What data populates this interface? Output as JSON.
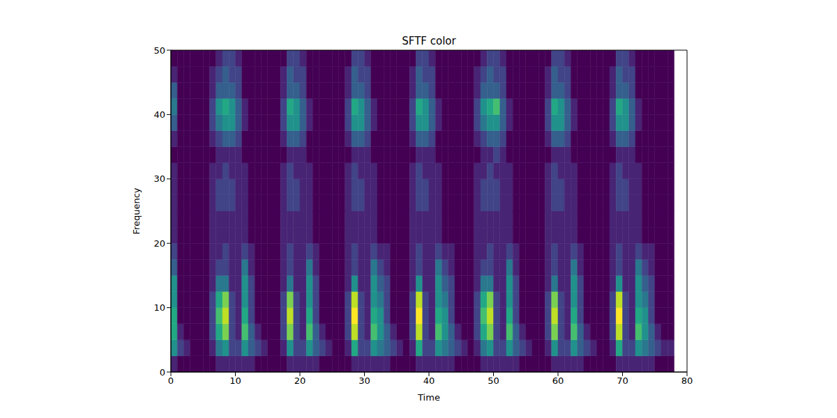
{
  "chart_data": {
    "type": "heatmap",
    "title": "SFTF color",
    "x_label": "Time",
    "y_label": "Frequency",
    "xlim": [
      0,
      80
    ],
    "ylim": [
      0,
      50
    ],
    "xticks": [
      0,
      10,
      20,
      30,
      40,
      50,
      60,
      70,
      80
    ],
    "yticks": [
      0,
      10,
      20,
      30,
      40,
      50
    ],
    "color": "viridis",
    "zlim": [
      0,
      10
    ],
    "x": [
      0,
      1,
      2,
      3,
      4,
      5,
      6,
      7,
      8,
      9,
      10,
      11,
      12,
      13,
      14,
      15,
      16,
      17,
      18,
      19,
      20,
      21,
      22,
      23,
      24,
      25,
      26,
      27,
      28,
      29,
      30,
      31,
      32,
      33,
      34,
      35,
      36,
      37,
      38,
      39,
      40,
      41,
      42,
      43,
      44,
      45,
      46,
      47,
      48,
      49,
      50,
      51,
      52,
      53,
      54,
      55,
      56,
      57,
      58,
      59,
      60,
      61,
      62,
      63,
      64,
      65,
      66,
      67,
      68,
      69,
      70,
      71,
      72,
      73,
      74,
      75,
      76,
      77
    ],
    "y": [
      0,
      2.5,
      5,
      7.5,
      10,
      12.5,
      15,
      17.5,
      20,
      22.5,
      25,
      27.5,
      30,
      32.5,
      35,
      37.5,
      40,
      42.5,
      45,
      47.5
    ],
    "z": [
      [
        1,
        5,
        6,
        6,
        5,
        5,
        3,
        2,
        1,
        1,
        1,
        1,
        1,
        0,
        1,
        3,
        4,
        3,
        1,
        0
      ],
      [
        0,
        2,
        1,
        0,
        0,
        0,
        0,
        0,
        0,
        0,
        0,
        0,
        0,
        0,
        0,
        0,
        0,
        0,
        0,
        0
      ],
      [
        0,
        1,
        0,
        0,
        0,
        0,
        0,
        0,
        0,
        0,
        0,
        0,
        0,
        0,
        0,
        0,
        0,
        0,
        0,
        0
      ],
      [
        0,
        0,
        0,
        0,
        0,
        0,
        0,
        0,
        0,
        0,
        0,
        0,
        0,
        0,
        0,
        0,
        0,
        0,
        0,
        0
      ],
      [
        0,
        0,
        0,
        0,
        0,
        0,
        0,
        0,
        0,
        0,
        0,
        0,
        0,
        0,
        0,
        0,
        0,
        0,
        0,
        0
      ],
      [
        0,
        0,
        0,
        0,
        0,
        0,
        0,
        0,
        0,
        0,
        0,
        0,
        0,
        0,
        0,
        0,
        0,
        0,
        0,
        0
      ],
      [
        0,
        1,
        2,
        2,
        2,
        1,
        1,
        1,
        1,
        1,
        1,
        1,
        1,
        0,
        1,
        2,
        2,
        1,
        1,
        0
      ],
      [
        1,
        4,
        6,
        7,
        6,
        4,
        2,
        1,
        1,
        1,
        2,
        2,
        1,
        1,
        2,
        4,
        5,
        3,
        2,
        1
      ],
      [
        1,
        5,
        8,
        9,
        8,
        4,
        2,
        2,
        1,
        1,
        2,
        2,
        2,
        1,
        3,
        5,
        6,
        3,
        3,
        2
      ],
      [
        1,
        2,
        2,
        2,
        2,
        1,
        1,
        1,
        1,
        1,
        2,
        2,
        1,
        1,
        3,
        5,
        5,
        3,
        2,
        2
      ],
      [
        1,
        2,
        1,
        1,
        1,
        1,
        1,
        1,
        1,
        1,
        1,
        1,
        1,
        1,
        2,
        3,
        3,
        2,
        2,
        1
      ],
      [
        1,
        5,
        7,
        6,
        5,
        5,
        4,
        2,
        1,
        1,
        1,
        1,
        1,
        0,
        0,
        1,
        1,
        0,
        0,
        0
      ],
      [
        1,
        3,
        3,
        2,
        2,
        2,
        1,
        1,
        0,
        0,
        0,
        0,
        0,
        0,
        0,
        0,
        0,
        0,
        0,
        0
      ],
      [
        0,
        2,
        1,
        0,
        0,
        0,
        0,
        0,
        0,
        0,
        0,
        0,
        0,
        0,
        0,
        0,
        0,
        0,
        0,
        0
      ],
      [
        0,
        1,
        0,
        0,
        0,
        0,
        0,
        0,
        0,
        0,
        0,
        0,
        0,
        0,
        0,
        0,
        0,
        0,
        0,
        0
      ],
      [
        0,
        0,
        0,
        0,
        0,
        0,
        0,
        0,
        0,
        0,
        0,
        0,
        0,
        0,
        0,
        0,
        0,
        0,
        0,
        0
      ],
      [
        0,
        0,
        0,
        0,
        0,
        0,
        0,
        0,
        0,
        0,
        0,
        0,
        0,
        0,
        0,
        0,
        0,
        0,
        0,
        0
      ],
      [
        0,
        1,
        2,
        2,
        2,
        1,
        1,
        1,
        1,
        1,
        1,
        1,
        1,
        0,
        1,
        2,
        2,
        1,
        1,
        0
      ],
      [
        1,
        5,
        8,
        9,
        8,
        4,
        2,
        2,
        1,
        1,
        2,
        2,
        2,
        1,
        3,
        5,
        6,
        3,
        3,
        2
      ],
      [
        1,
        2,
        2,
        2,
        2,
        1,
        1,
        1,
        1,
        1,
        2,
        2,
        1,
        1,
        3,
        5,
        5,
        3,
        2,
        2
      ],
      [
        1,
        2,
        1,
        1,
        1,
        1,
        1,
        1,
        1,
        1,
        1,
        1,
        1,
        1,
        2,
        3,
        3,
        2,
        2,
        1
      ],
      [
        1,
        5,
        7,
        6,
        5,
        5,
        4,
        2,
        1,
        1,
        1,
        1,
        1,
        0,
        0,
        1,
        1,
        0,
        0,
        0
      ],
      [
        1,
        3,
        3,
        2,
        2,
        2,
        1,
        1,
        0,
        0,
        0,
        0,
        0,
        0,
        0,
        0,
        0,
        0,
        0,
        0
      ],
      [
        0,
        2,
        1,
        0,
        0,
        0,
        0,
        0,
        0,
        0,
        0,
        0,
        0,
        0,
        0,
        0,
        0,
        0,
        0,
        0
      ],
      [
        0,
        1,
        0,
        0,
        0,
        0,
        0,
        0,
        0,
        0,
        0,
        0,
        0,
        0,
        0,
        0,
        0,
        0,
        0,
        0
      ],
      [
        0,
        0,
        0,
        0,
        0,
        0,
        0,
        0,
        0,
        0,
        0,
        0,
        0,
        0,
        0,
        0,
        0,
        0,
        0,
        0
      ],
      [
        0,
        0,
        0,
        0,
        0,
        0,
        0,
        0,
        0,
        0,
        0,
        0,
        0,
        0,
        0,
        0,
        0,
        0,
        0,
        0
      ],
      [
        0,
        1,
        2,
        2,
        2,
        1,
        1,
        1,
        1,
        1,
        1,
        1,
        1,
        0,
        1,
        2,
        2,
        1,
        1,
        0
      ],
      [
        1,
        6,
        9,
        10,
        9,
        5,
        2,
        2,
        1,
        1,
        2,
        2,
        2,
        1,
        3,
        5,
        6,
        3,
        3,
        2
      ],
      [
        1,
        2,
        2,
        2,
        2,
        1,
        1,
        1,
        1,
        1,
        2,
        2,
        1,
        1,
        3,
        5,
        5,
        3,
        2,
        2
      ],
      [
        1,
        2,
        1,
        1,
        1,
        1,
        1,
        1,
        1,
        1,
        1,
        1,
        1,
        1,
        2,
        3,
        3,
        2,
        2,
        1
      ],
      [
        1,
        5,
        7,
        6,
        5,
        5,
        4,
        2,
        1,
        1,
        1,
        1,
        1,
        0,
        0,
        1,
        1,
        0,
        0,
        0
      ],
      [
        1,
        4,
        5,
        5,
        4,
        3,
        2,
        1,
        0,
        0,
        0,
        0,
        0,
        0,
        0,
        0,
        0,
        0,
        0,
        0
      ],
      [
        1,
        3,
        3,
        2,
        2,
        2,
        1,
        1,
        0,
        0,
        0,
        0,
        0,
        0,
        0,
        0,
        0,
        0,
        0,
        0
      ],
      [
        0,
        2,
        1,
        0,
        0,
        0,
        0,
        0,
        0,
        0,
        0,
        0,
        0,
        0,
        0,
        0,
        0,
        0,
        0,
        0
      ],
      [
        0,
        1,
        0,
        0,
        0,
        0,
        0,
        0,
        0,
        0,
        0,
        0,
        0,
        0,
        0,
        0,
        0,
        0,
        0,
        0
      ],
      [
        0,
        0,
        0,
        0,
        0,
        0,
        0,
        0,
        0,
        0,
        0,
        0,
        0,
        0,
        0,
        0,
        0,
        0,
        0,
        0
      ],
      [
        0,
        1,
        2,
        2,
        2,
        1,
        1,
        1,
        1,
        1,
        1,
        1,
        1,
        0,
        1,
        2,
        2,
        1,
        1,
        0
      ],
      [
        1,
        6,
        9,
        10,
        9,
        5,
        2,
        2,
        1,
        1,
        2,
        2,
        2,
        1,
        3,
        5,
        6,
        3,
        3,
        2
      ],
      [
        1,
        2,
        2,
        2,
        2,
        1,
        1,
        1,
        1,
        1,
        2,
        2,
        1,
        1,
        3,
        5,
        5,
        3,
        2,
        2
      ],
      [
        1,
        2,
        1,
        1,
        1,
        1,
        1,
        1,
        1,
        1,
        1,
        1,
        1,
        1,
        2,
        3,
        3,
        2,
        2,
        1
      ],
      [
        1,
        5,
        7,
        6,
        5,
        5,
        4,
        2,
        1,
        1,
        1,
        1,
        1,
        0,
        0,
        1,
        1,
        0,
        0,
        0
      ],
      [
        1,
        4,
        5,
        5,
        4,
        3,
        2,
        1,
        0,
        0,
        0,
        0,
        0,
        0,
        0,
        0,
        0,
        0,
        0,
        0
      ],
      [
        1,
        3,
        3,
        2,
        2,
        2,
        1,
        1,
        0,
        0,
        0,
        0,
        0,
        0,
        0,
        0,
        0,
        0,
        0,
        0
      ],
      [
        0,
        2,
        1,
        0,
        0,
        0,
        0,
        0,
        0,
        0,
        0,
        0,
        0,
        0,
        0,
        0,
        0,
        0,
        0,
        0
      ],
      [
        0,
        1,
        0,
        0,
        0,
        0,
        0,
        0,
        0,
        0,
        0,
        0,
        0,
        0,
        0,
        0,
        0,
        0,
        0,
        0
      ],
      [
        0,
        0,
        0,
        0,
        0,
        0,
        0,
        0,
        0,
        0,
        0,
        0,
        0,
        0,
        0,
        0,
        0,
        0,
        0,
        0
      ],
      [
        0,
        1,
        2,
        2,
        2,
        1,
        1,
        1,
        1,
        1,
        1,
        1,
        1,
        0,
        1,
        2,
        2,
        1,
        1,
        0
      ],
      [
        1,
        4,
        6,
        7,
        6,
        4,
        2,
        1,
        1,
        1,
        2,
        2,
        1,
        1,
        2,
        4,
        5,
        3,
        2,
        1
      ],
      [
        1,
        5,
        8,
        9,
        8,
        4,
        2,
        2,
        1,
        1,
        2,
        2,
        2,
        1,
        3,
        5,
        6,
        3,
        3,
        2
      ],
      [
        1,
        2,
        2,
        2,
        2,
        1,
        1,
        1,
        1,
        1,
        2,
        2,
        1,
        2,
        3,
        5,
        7,
        3,
        2,
        2
      ],
      [
        1,
        2,
        1,
        1,
        1,
        1,
        1,
        1,
        1,
        1,
        1,
        1,
        1,
        1,
        2,
        3,
        3,
        2,
        2,
        1
      ],
      [
        1,
        5,
        7,
        6,
        5,
        5,
        4,
        2,
        1,
        1,
        1,
        1,
        1,
        0,
        0,
        1,
        1,
        0,
        0,
        0
      ],
      [
        1,
        3,
        3,
        2,
        2,
        2,
        1,
        1,
        0,
        0,
        0,
        0,
        0,
        0,
        0,
        0,
        0,
        0,
        0,
        0
      ],
      [
        0,
        2,
        1,
        0,
        0,
        0,
        0,
        0,
        0,
        0,
        0,
        0,
        0,
        0,
        0,
        0,
        0,
        0,
        0,
        0
      ],
      [
        0,
        1,
        0,
        0,
        0,
        0,
        0,
        0,
        0,
        0,
        0,
        0,
        0,
        0,
        0,
        0,
        0,
        0,
        0,
        0
      ],
      [
        0,
        0,
        0,
        0,
        0,
        0,
        0,
        0,
        0,
        0,
        0,
        0,
        0,
        0,
        0,
        0,
        0,
        0,
        0,
        0
      ],
      [
        0,
        0,
        0,
        0,
        0,
        0,
        0,
        0,
        0,
        0,
        0,
        0,
        0,
        0,
        0,
        0,
        0,
        0,
        0,
        0
      ],
      [
        0,
        1,
        2,
        2,
        2,
        1,
        1,
        1,
        1,
        1,
        1,
        1,
        1,
        0,
        1,
        2,
        2,
        1,
        1,
        0
      ],
      [
        1,
        5,
        8,
        9,
        8,
        4,
        2,
        2,
        1,
        1,
        2,
        2,
        2,
        1,
        3,
        5,
        6,
        3,
        3,
        2
      ],
      [
        1,
        2,
        2,
        2,
        2,
        1,
        1,
        1,
        1,
        1,
        2,
        2,
        1,
        1,
        3,
        5,
        5,
        3,
        2,
        2
      ],
      [
        1,
        2,
        1,
        1,
        1,
        1,
        1,
        1,
        1,
        1,
        1,
        1,
        1,
        1,
        2,
        3,
        3,
        2,
        2,
        1
      ],
      [
        1,
        5,
        7,
        6,
        5,
        5,
        4,
        2,
        1,
        1,
        1,
        1,
        1,
        0,
        0,
        1,
        1,
        0,
        0,
        0
      ],
      [
        1,
        3,
        3,
        2,
        2,
        2,
        1,
        1,
        0,
        0,
        0,
        0,
        0,
        0,
        0,
        0,
        0,
        0,
        0,
        0
      ],
      [
        0,
        2,
        1,
        0,
        0,
        0,
        0,
        0,
        0,
        0,
        0,
        0,
        0,
        0,
        0,
        0,
        0,
        0,
        0,
        0
      ],
      [
        0,
        1,
        0,
        0,
        0,
        0,
        0,
        0,
        0,
        0,
        0,
        0,
        0,
        0,
        0,
        0,
        0,
        0,
        0,
        0
      ],
      [
        0,
        0,
        0,
        0,
        0,
        0,
        0,
        0,
        0,
        0,
        0,
        0,
        0,
        0,
        0,
        0,
        0,
        0,
        0,
        0
      ],
      [
        0,
        0,
        0,
        0,
        0,
        0,
        0,
        0,
        0,
        0,
        0,
        0,
        0,
        0,
        0,
        0,
        0,
        0,
        0,
        0
      ],
      [
        0,
        1,
        2,
        2,
        2,
        1,
        1,
        1,
        1,
        1,
        1,
        1,
        1,
        0,
        1,
        2,
        2,
        1,
        1,
        0
      ],
      [
        1,
        6,
        9,
        10,
        9,
        5,
        2,
        2,
        1,
        1,
        2,
        2,
        2,
        1,
        3,
        5,
        6,
        3,
        3,
        2
      ],
      [
        1,
        2,
        2,
        2,
        2,
        1,
        1,
        1,
        1,
        1,
        2,
        2,
        1,
        1,
        3,
        5,
        5,
        3,
        2,
        2
      ],
      [
        1,
        2,
        1,
        1,
        1,
        1,
        1,
        1,
        1,
        1,
        1,
        1,
        1,
        1,
        2,
        3,
        3,
        2,
        2,
        1
      ],
      [
        1,
        5,
        7,
        6,
        5,
        5,
        4,
        2,
        1,
        1,
        1,
        1,
        1,
        0,
        0,
        1,
        1,
        0,
        0,
        0
      ],
      [
        1,
        4,
        5,
        5,
        4,
        3,
        2,
        1,
        0,
        0,
        0,
        0,
        0,
        0,
        0,
        0,
        0,
        0,
        0,
        0
      ],
      [
        1,
        3,
        3,
        2,
        2,
        2,
        1,
        1,
        0,
        0,
        0,
        0,
        0,
        0,
        0,
        0,
        0,
        0,
        0,
        0
      ],
      [
        0,
        2,
        1,
        0,
        0,
        0,
        0,
        0,
        0,
        0,
        0,
        0,
        0,
        0,
        0,
        0,
        0,
        0,
        0,
        0
      ],
      [
        0,
        1,
        0,
        0,
        0,
        0,
        0,
        0,
        0,
        0,
        0,
        0,
        0,
        0,
        0,
        0,
        0,
        0,
        0,
        0
      ],
      [
        0,
        1,
        0,
        0,
        0,
        0,
        0,
        0,
        0,
        0,
        0,
        0,
        0,
        0,
        0,
        0,
        0,
        0,
        0,
        0
      ]
    ]
  }
}
